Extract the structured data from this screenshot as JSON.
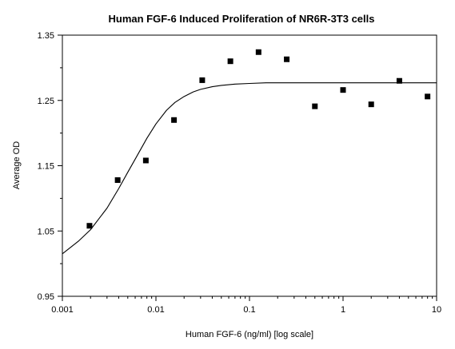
{
  "chart_data": {
    "type": "scatter",
    "title": "Human FGF-6 Induced Proliferation of NR6R-3T3 cells",
    "xlabel": "Human FGF-6 (ng/ml) [log scale]",
    "ylabel": "Average OD",
    "x_scale": "log",
    "xlim": [
      0.001,
      10
    ],
    "ylim": [
      0.95,
      1.35
    ],
    "x_ticks": [
      "0.001",
      "0.01",
      "0.1",
      "1",
      "10"
    ],
    "y_ticks": [
      "0.95",
      "1.05",
      "1.15",
      "1.25",
      "1.35"
    ],
    "grid": false,
    "legend": "none",
    "series": [
      {
        "type": "scatter",
        "marker": "square",
        "color": "#000000",
        "x": [
          0.00195,
          0.0039,
          0.0078,
          0.0156,
          0.03125,
          0.0625,
          0.125,
          0.25,
          0.5,
          1,
          2,
          4,
          8
        ],
        "y": [
          1.058,
          1.128,
          1.158,
          1.22,
          1.281,
          1.31,
          1.324,
          1.313,
          1.241,
          1.266,
          1.244,
          1.28,
          1.256
        ]
      },
      {
        "type": "line",
        "color": "#000000",
        "x": [
          0.001,
          0.0015,
          0.002,
          0.003,
          0.004,
          0.005,
          0.006,
          0.008,
          0.01,
          0.013,
          0.016,
          0.02,
          0.025,
          0.03,
          0.04,
          0.05,
          0.07,
          0.1,
          0.15,
          0.2,
          0.3,
          0.5,
          1,
          2,
          5,
          10
        ],
        "y": [
          1.015,
          1.035,
          1.052,
          1.085,
          1.115,
          1.14,
          1.16,
          1.192,
          1.214,
          1.235,
          1.247,
          1.256,
          1.263,
          1.267,
          1.271,
          1.273,
          1.275,
          1.276,
          1.277,
          1.277,
          1.277,
          1.277,
          1.277,
          1.277,
          1.277,
          1.277
        ]
      }
    ]
  }
}
